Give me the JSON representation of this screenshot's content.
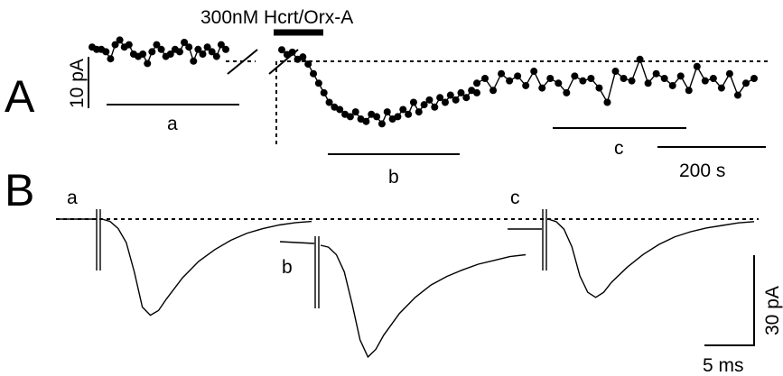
{
  "chart_data": [
    {
      "type": "scatter",
      "panel": "A",
      "drug_label": "300nM Hcrt/Orx-A",
      "scale_bars": {
        "y": "10 pA",
        "x": "200 s"
      },
      "segments": [
        {
          "label": "a",
          "x": [
            0,
            5,
            10,
            15,
            20,
            25,
            30,
            35,
            40,
            45,
            50,
            55,
            60,
            65,
            70,
            75,
            80,
            85,
            90,
            95,
            100,
            105,
            110,
            115,
            120,
            125,
            130,
            135,
            140,
            145
          ],
          "y": [
            7,
            8,
            8,
            9,
            12,
            6,
            4,
            7,
            6,
            10,
            11,
            10,
            14,
            9,
            6,
            8,
            11,
            10,
            8,
            9,
            5,
            7,
            13,
            8,
            10,
            7,
            9,
            11,
            6,
            8
          ]
        },
        {
          "label": "b",
          "x": [
            0,
            10,
            20,
            30,
            40,
            50,
            60,
            70,
            80,
            90,
            100,
            110,
            120,
            130,
            140,
            150,
            160,
            170,
            180,
            190,
            200,
            210,
            220,
            230,
            240,
            250,
            260,
            270,
            280,
            290,
            300,
            310,
            320,
            330,
            340,
            350,
            360,
            370
          ],
          "y": [
            8,
            10,
            9,
            12,
            11,
            14,
            18,
            22,
            26,
            30,
            32,
            33,
            35,
            36,
            34,
            37,
            38,
            35,
            36,
            39,
            34,
            37,
            36,
            33,
            35,
            30,
            34,
            31,
            29,
            32,
            28,
            30,
            27,
            29,
            26,
            28,
            25,
            26
          ]
        },
        {
          "label": "c",
          "x": [
            0,
            10,
            20,
            30,
            40,
            50,
            60,
            70,
            80,
            90,
            100,
            110,
            120,
            130,
            140,
            150,
            160,
            170,
            180,
            190,
            200,
            210,
            220,
            230,
            240,
            250,
            260,
            270,
            280,
            290,
            300,
            310,
            320,
            330,
            340
          ],
          "y": [
            22,
            20,
            25,
            18,
            21,
            19,
            23,
            17,
            24,
            20,
            22,
            26,
            19,
            21,
            20,
            24,
            30,
            17,
            20,
            21,
            12,
            22,
            18,
            20,
            23,
            19,
            25,
            15,
            21,
            20,
            24,
            18,
            27,
            22,
            20
          ]
        }
      ]
    },
    {
      "type": "line",
      "panel": "B",
      "scale_bars": {
        "y": "30 pA",
        "x": "5 ms"
      },
      "traces": [
        {
          "label": "a",
          "x": [
            0,
            1,
            2,
            3,
            4,
            5,
            6,
            7,
            8,
            10,
            12,
            14,
            16,
            18,
            20,
            22,
            24,
            26
          ],
          "y": [
            0,
            -2,
            -8,
            -20,
            -45,
            -75,
            -82,
            -78,
            -68,
            -50,
            -36,
            -26,
            -18,
            -12,
            -8,
            -5,
            -3,
            -2
          ]
        },
        {
          "label": "b",
          "x": [
            0,
            1,
            2,
            3,
            4,
            5,
            6,
            7,
            8,
            10,
            12,
            14,
            16,
            18,
            20,
            22,
            24,
            26
          ],
          "y": [
            0,
            -2,
            -10,
            -28,
            -62,
            -100,
            -118,
            -110,
            -95,
            -72,
            -55,
            -42,
            -33,
            -26,
            -20,
            -16,
            -12,
            -10
          ]
        },
        {
          "label": "c",
          "x": [
            0,
            1,
            2,
            3,
            4,
            5,
            6,
            7,
            8,
            10,
            12,
            14,
            16,
            18,
            20,
            22,
            24,
            26
          ],
          "y": [
            0,
            -2,
            -8,
            -22,
            -45,
            -58,
            -62,
            -58,
            -50,
            -38,
            -28,
            -20,
            -14,
            -10,
            -7,
            -5,
            -3,
            -2
          ]
        }
      ]
    }
  ],
  "labels": {
    "panel_a": "A",
    "panel_b": "B",
    "drug": "300nM Hcrt/Orx-A",
    "seg_a": "a",
    "seg_b": "b",
    "seg_c": "c",
    "trace_a": "a",
    "trace_b": "b",
    "trace_c": "c",
    "scale_a_y": "10 pA",
    "scale_a_x": "200 s",
    "scale_b_y": "30 pA",
    "scale_b_x": "5 ms"
  }
}
